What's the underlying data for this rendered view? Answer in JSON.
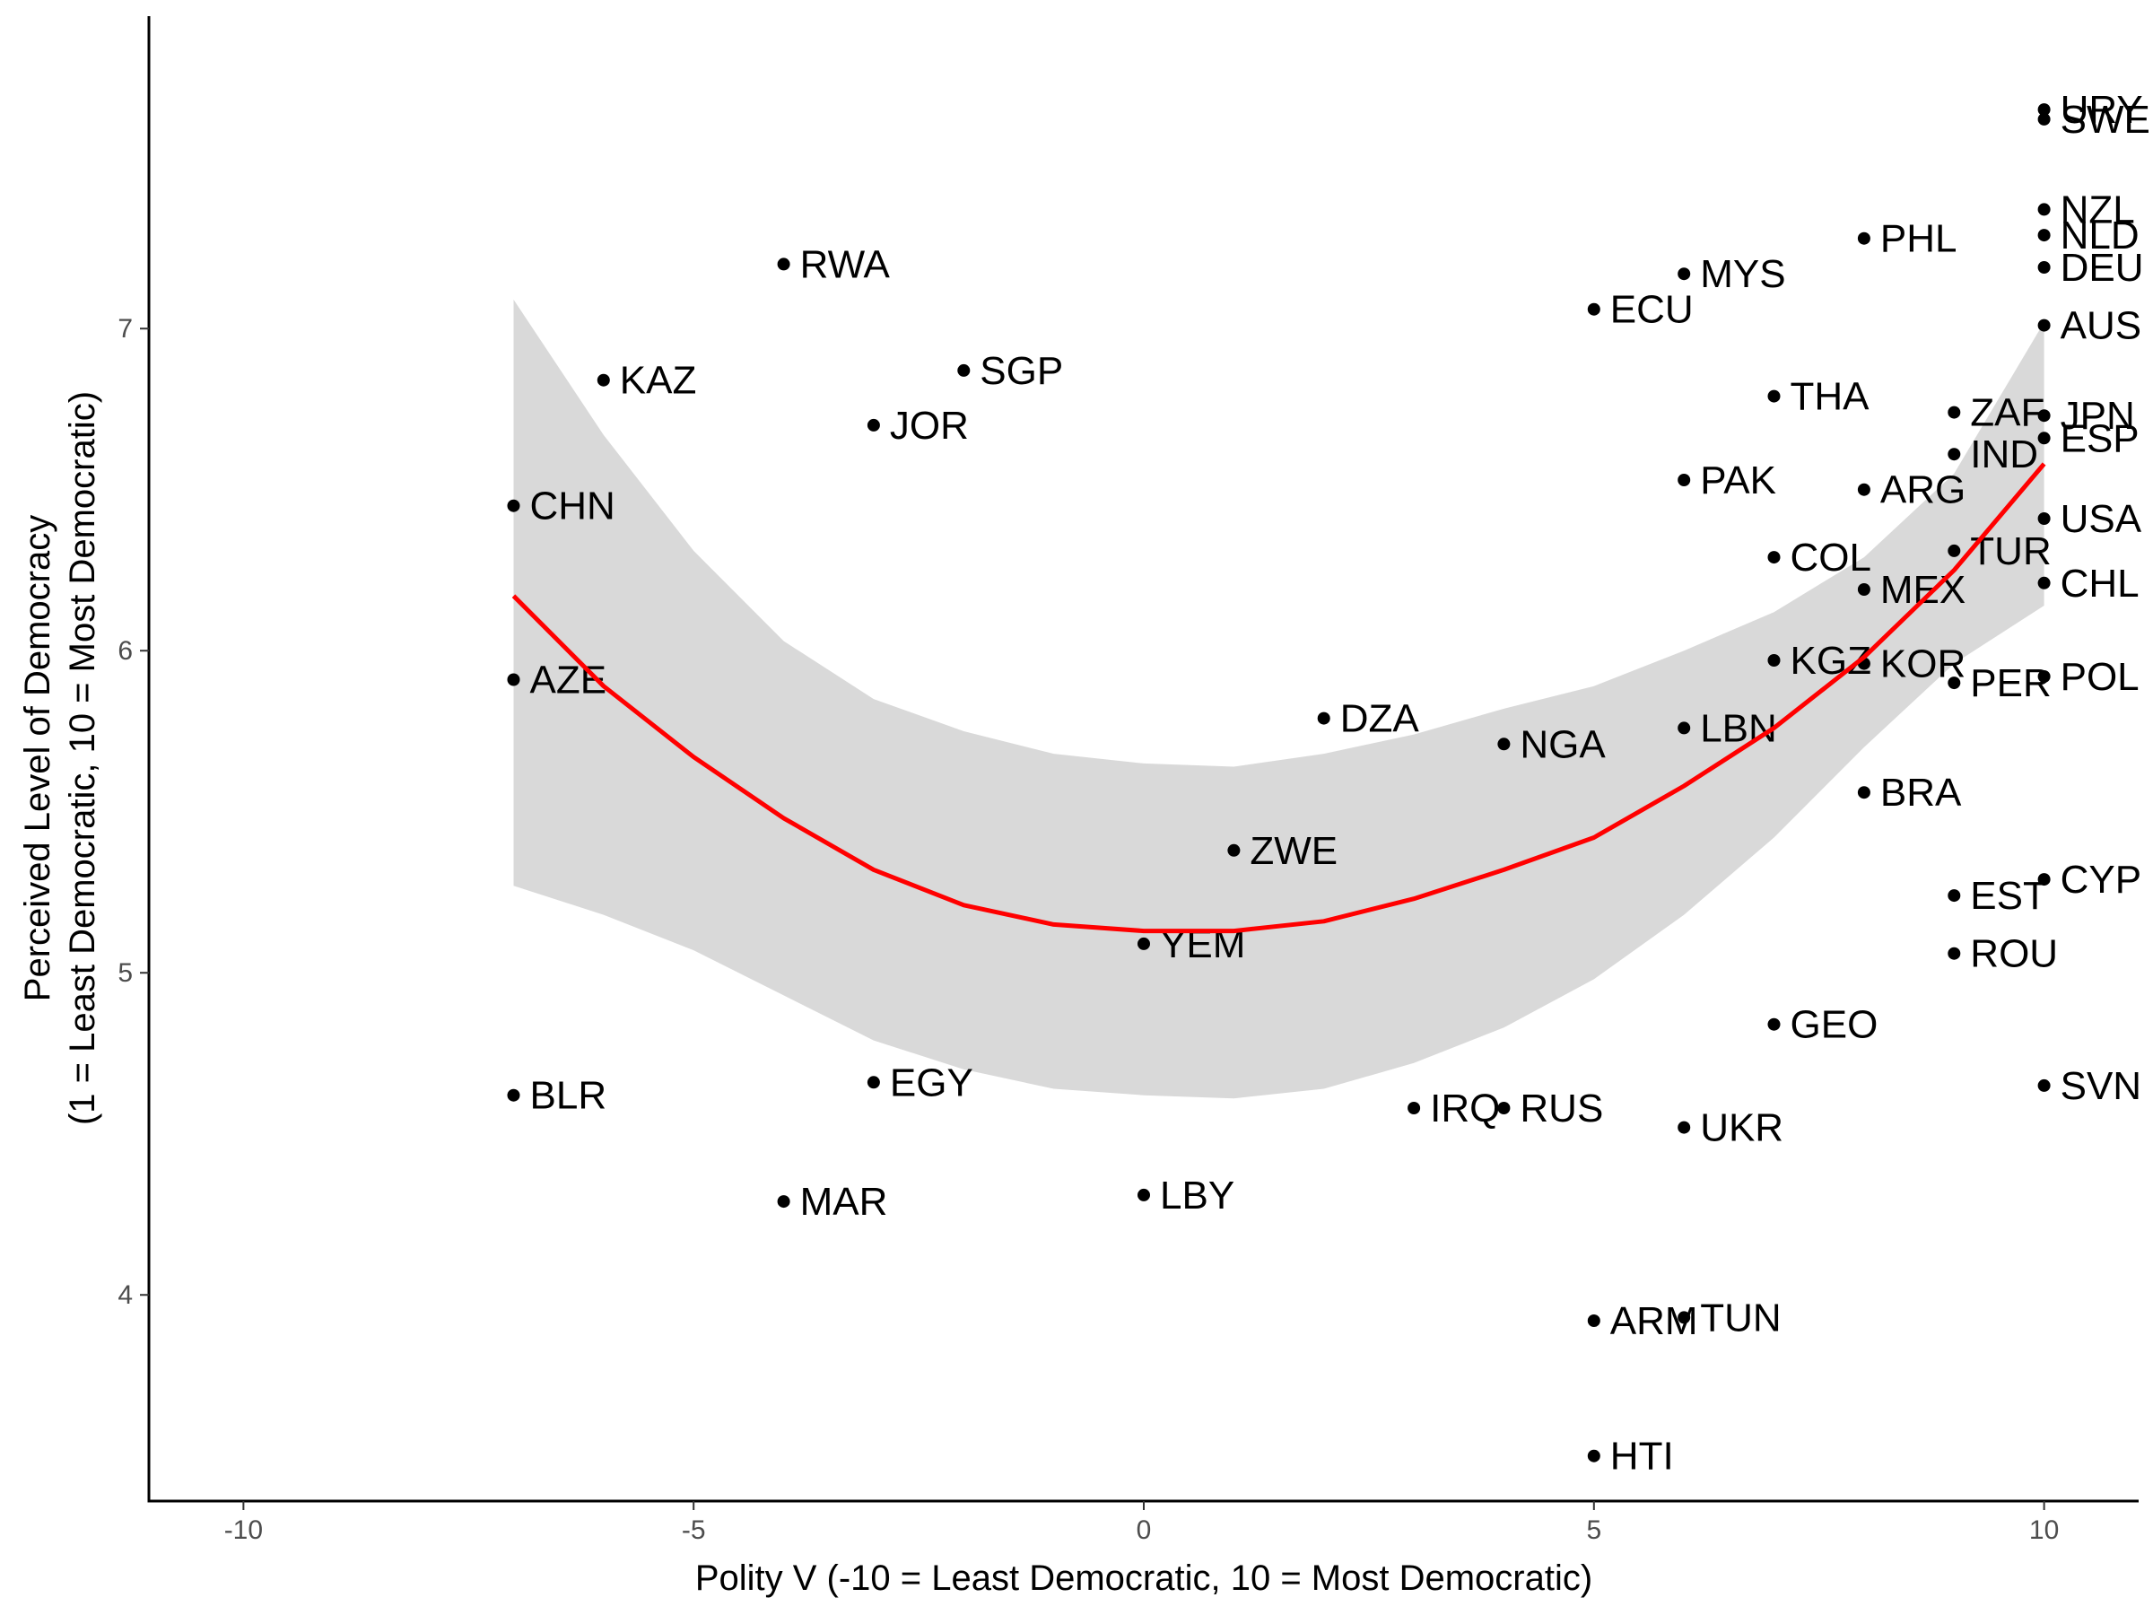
{
  "chart_data": {
    "type": "scatter",
    "xlabel": "Polity V (-10 = Least Democratic, 10 = Most Democratic)",
    "ylabel_line1": "Perceived Level of Democracy",
    "ylabel_line2": "(1 = Least Democratic, 10 = Most Democratic)",
    "xlim": [
      -11.05,
      11.05
    ],
    "ylim": [
      3.36,
      7.97
    ],
    "xticks": [
      -10,
      -5,
      0,
      5,
      10
    ],
    "yticks": [
      4,
      5,
      6,
      7
    ],
    "grid": false,
    "points": [
      {
        "label": "URY",
        "x": 10,
        "y": 7.68
      },
      {
        "label": "SWE",
        "x": 10,
        "y": 7.65
      },
      {
        "label": "NZL",
        "x": 10,
        "y": 7.37
      },
      {
        "label": "NLD",
        "x": 10,
        "y": 7.29
      },
      {
        "label": "DEU",
        "x": 10,
        "y": 7.19
      },
      {
        "label": "AUS",
        "x": 10,
        "y": 7.01
      },
      {
        "label": "JPN",
        "x": 10,
        "y": 6.73
      },
      {
        "label": "ESP",
        "x": 10,
        "y": 6.66
      },
      {
        "label": "USA",
        "x": 10,
        "y": 6.41
      },
      {
        "label": "CHL",
        "x": 10,
        "y": 6.21
      },
      {
        "label": "POL",
        "x": 10,
        "y": 5.92
      },
      {
        "label": "CYP",
        "x": 10,
        "y": 5.29
      },
      {
        "label": "SVN",
        "x": 10,
        "y": 4.65
      },
      {
        "label": "ZAF",
        "x": 9,
        "y": 6.74
      },
      {
        "label": "IND",
        "x": 9,
        "y": 6.61
      },
      {
        "label": "TUR",
        "x": 9,
        "y": 6.31
      },
      {
        "label": "PER",
        "x": 9,
        "y": 5.9
      },
      {
        "label": "EST",
        "x": 9,
        "y": 5.24
      },
      {
        "label": "ROU",
        "x": 9,
        "y": 5.06
      },
      {
        "label": "PHL",
        "x": 8,
        "y": 7.28
      },
      {
        "label": "ARG",
        "x": 8,
        "y": 6.5
      },
      {
        "label": "MEX",
        "x": 8,
        "y": 6.19
      },
      {
        "label": "KOR",
        "x": 8,
        "y": 5.96
      },
      {
        "label": "BRA",
        "x": 8,
        "y": 5.56
      },
      {
        "label": "THA",
        "x": 7,
        "y": 6.79
      },
      {
        "label": "COL",
        "x": 7,
        "y": 6.29
      },
      {
        "label": "KGZ",
        "x": 7,
        "y": 5.97
      },
      {
        "label": "GEO",
        "x": 7,
        "y": 4.84
      },
      {
        "label": "MYS",
        "x": 6,
        "y": 7.17
      },
      {
        "label": "PAK",
        "x": 6,
        "y": 6.53
      },
      {
        "label": "LBN",
        "x": 6,
        "y": 5.76
      },
      {
        "label": "UKR",
        "x": 6,
        "y": 4.52
      },
      {
        "label": "TUN",
        "x": 6,
        "y": 3.93
      },
      {
        "label": "ECU",
        "x": 5,
        "y": 7.06
      },
      {
        "label": "ARM",
        "x": 5,
        "y": 3.92
      },
      {
        "label": "HTI",
        "x": 5,
        "y": 3.5
      },
      {
        "label": "NGA",
        "x": 4,
        "y": 5.71
      },
      {
        "label": "RUS",
        "x": 4,
        "y": 4.58
      },
      {
        "label": "IRQ",
        "x": 3,
        "y": 4.58
      },
      {
        "label": "DZA",
        "x": 2,
        "y": 5.79
      },
      {
        "label": "ZWE",
        "x": 1,
        "y": 5.38
      },
      {
        "label": "YEM",
        "x": 0,
        "y": 5.09
      },
      {
        "label": "LBY",
        "x": 0,
        "y": 4.31
      },
      {
        "label": "SGP",
        "x": -2,
        "y": 6.87
      },
      {
        "label": "JOR",
        "x": -3,
        "y": 6.7
      },
      {
        "label": "EGY",
        "x": -3,
        "y": 4.66
      },
      {
        "label": "RWA",
        "x": -4,
        "y": 7.2
      },
      {
        "label": "MAR",
        "x": -4,
        "y": 4.29
      },
      {
        "label": "KAZ",
        "x": -6,
        "y": 6.84
      },
      {
        "label": "CHN",
        "x": -7,
        "y": 6.45
      },
      {
        "label": "AZE",
        "x": -7,
        "y": 5.91
      },
      {
        "label": "BLR",
        "x": -7,
        "y": 4.62
      }
    ],
    "fit": {
      "type": "quadratic",
      "color": "#ff0000",
      "ribbon_color": "#d9d9d9",
      "x": [
        -7,
        -6,
        -5,
        -4,
        -3,
        -2,
        -1,
        0,
        1,
        2,
        3,
        4,
        5,
        6,
        7,
        8,
        9,
        10
      ],
      "y": [
        6.17,
        5.89,
        5.67,
        5.48,
        5.32,
        5.21,
        5.15,
        5.13,
        5.13,
        5.16,
        5.23,
        5.32,
        5.42,
        5.58,
        5.76,
        5.98,
        6.25,
        6.58
      ],
      "lower": [
        5.27,
        5.18,
        5.07,
        4.93,
        4.79,
        4.7,
        4.64,
        4.62,
        4.61,
        4.64,
        4.72,
        4.83,
        4.98,
        5.18,
        5.42,
        5.7,
        5.96,
        6.14
      ],
      "upper": [
        7.09,
        6.67,
        6.31,
        6.03,
        5.85,
        5.75,
        5.68,
        5.65,
        5.64,
        5.68,
        5.74,
        5.82,
        5.89,
        6.0,
        6.12,
        6.29,
        6.55,
        7.02
      ]
    }
  }
}
